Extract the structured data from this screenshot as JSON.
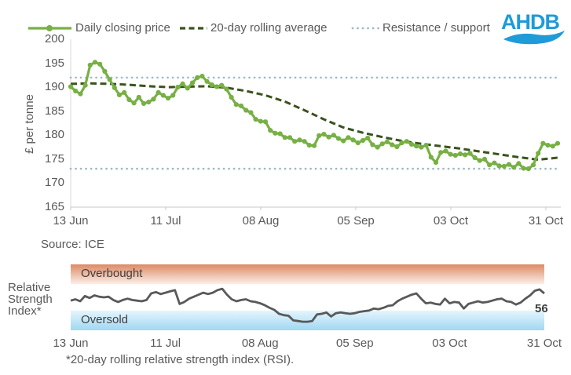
{
  "legend": {
    "items": [
      {
        "label": "Daily closing price",
        "style": "line-marker",
        "color": "#77b043"
      },
      {
        "label": "20-day rolling average",
        "style": "dashed",
        "color": "#3a531d"
      },
      {
        "label": "Resistance / support",
        "style": "dotted",
        "color": "#a0b9c8"
      }
    ]
  },
  "logo": {
    "text": "AHDB",
    "color": "#1f9bd7"
  },
  "source_note": "Source: ICE",
  "footnote": "*20-day rolling relative strength index (RSI).",
  "chart_data": [
    {
      "type": "line",
      "title": "Daily closing price vs 20-day rolling average",
      "ylabel": "£ per tonne",
      "ylim": [
        165,
        200
      ],
      "yticks": [
        200,
        195,
        190,
        185,
        180,
        175,
        170,
        165
      ],
      "xticklabels": [
        "13 Jun",
        "11 Jul",
        "08 Aug",
        "05 Sep",
        "03 Oct",
        "31 Oct"
      ],
      "grid": false,
      "legend_position": "top",
      "series": [
        {
          "name": "Daily closing price",
          "style": "line-marker",
          "color": "#77b043",
          "values": [
            190.1,
            189.2,
            188.6,
            190.4,
            194.6,
            195.2,
            194.8,
            193.3,
            191.6,
            189.9,
            188.4,
            188.9,
            187.4,
            186.7,
            187.9,
            186.6,
            186.9,
            187.5,
            188.9,
            188.3,
            187.7,
            188.3,
            190.0,
            190.7,
            189.8,
            190.9,
            192.0,
            192.3,
            191.2,
            190.5,
            190.1,
            190.4,
            189.6,
            187.9,
            186.4,
            186.1,
            185.2,
            184.7,
            183.3,
            182.9,
            182.8,
            181.0,
            180.4,
            180.3,
            179.5,
            179.5,
            178.7,
            179.0,
            178.7,
            177.9,
            177.8,
            179.9,
            180.2,
            179.6,
            180.0,
            179.3,
            178.8,
            179.5,
            179.0,
            178.4,
            178.9,
            179.4,
            178.0,
            177.5,
            178.2,
            178.6,
            178.0,
            177.6,
            178.4,
            178.7,
            178.1,
            177.7,
            177.5,
            177.9,
            175.4,
            174.3,
            176.4,
            176.7,
            176.0,
            175.8,
            176.1,
            175.9,
            176.2,
            175.3,
            174.7,
            175.0,
            173.8,
            174.2,
            173.6,
            173.5,
            173.9,
            173.3,
            174.1,
            173.1,
            173.0,
            173.8,
            176.2,
            178.3,
            177.9,
            177.7,
            178.3
          ]
        },
        {
          "name": "20-day rolling average",
          "style": "dashed",
          "color": "#3a531d",
          "x": [
            0,
            4,
            8,
            12,
            16,
            20,
            24,
            28,
            32,
            36,
            40,
            44,
            48,
            52,
            56,
            60,
            64,
            68,
            72,
            76,
            80,
            84,
            88,
            92,
            96,
            100
          ],
          "values": [
            190.7,
            190.8,
            190.7,
            190.5,
            190.2,
            190.0,
            190.1,
            190.2,
            189.9,
            189.2,
            188.3,
            187.0,
            185.2,
            183.3,
            181.6,
            180.5,
            179.6,
            178.8,
            178.2,
            177.7,
            177.2,
            176.6,
            176.0,
            175.4,
            174.9,
            175.3
          ]
        },
        {
          "name": "Resistance",
          "style": "dotted",
          "color": "#a0b9c8",
          "value": 192
        },
        {
          "name": "Support",
          "style": "dotted",
          "color": "#a0b9c8",
          "value": 173
        }
      ]
    },
    {
      "type": "line",
      "title": "Relative Strength Index",
      "ylabel_lines": [
        "Relative",
        "Strength",
        "Index*"
      ],
      "ylim": [
        0,
        100
      ],
      "xticklabels": [
        "13 Jun",
        "11 Jul",
        "08 Aug",
        "05 Sep",
        "03 Oct",
        "31 Oct"
      ],
      "end_label": "56",
      "bands": [
        {
          "label": "Overbought",
          "range": [
            70,
            100
          ],
          "color_top": "#dc8a65",
          "color_bottom": "#fcefe8"
        },
        {
          "label": "Oversold",
          "range": [
            0,
            30
          ],
          "color_top": "#e6f5fd",
          "color_bottom": "#9fd8f2"
        }
      ],
      "series": [
        {
          "name": "20-day rolling RSI",
          "color": "#595959",
          "values": [
            45,
            47,
            44,
            52,
            49,
            53,
            51,
            50,
            51,
            46,
            43,
            46,
            48,
            46,
            45,
            44,
            46,
            56,
            58,
            55,
            57,
            59,
            61,
            40,
            43,
            48,
            51,
            54,
            57,
            55,
            57,
            61,
            63,
            54,
            47,
            44,
            46,
            47,
            44,
            43,
            41,
            38,
            34,
            31,
            25,
            23,
            22,
            15,
            14,
            13,
            13,
            14,
            24,
            25,
            27,
            21,
            26,
            27,
            26,
            25,
            26,
            28,
            29,
            30,
            33,
            32,
            34,
            37,
            38,
            44,
            48,
            51,
            54,
            56,
            48,
            41,
            42,
            40,
            39,
            48,
            41,
            43,
            42,
            33,
            40,
            42,
            44,
            42,
            43,
            45,
            47,
            48,
            44,
            43,
            39,
            42,
            48,
            53,
            60,
            62,
            56
          ]
        }
      ]
    }
  ]
}
